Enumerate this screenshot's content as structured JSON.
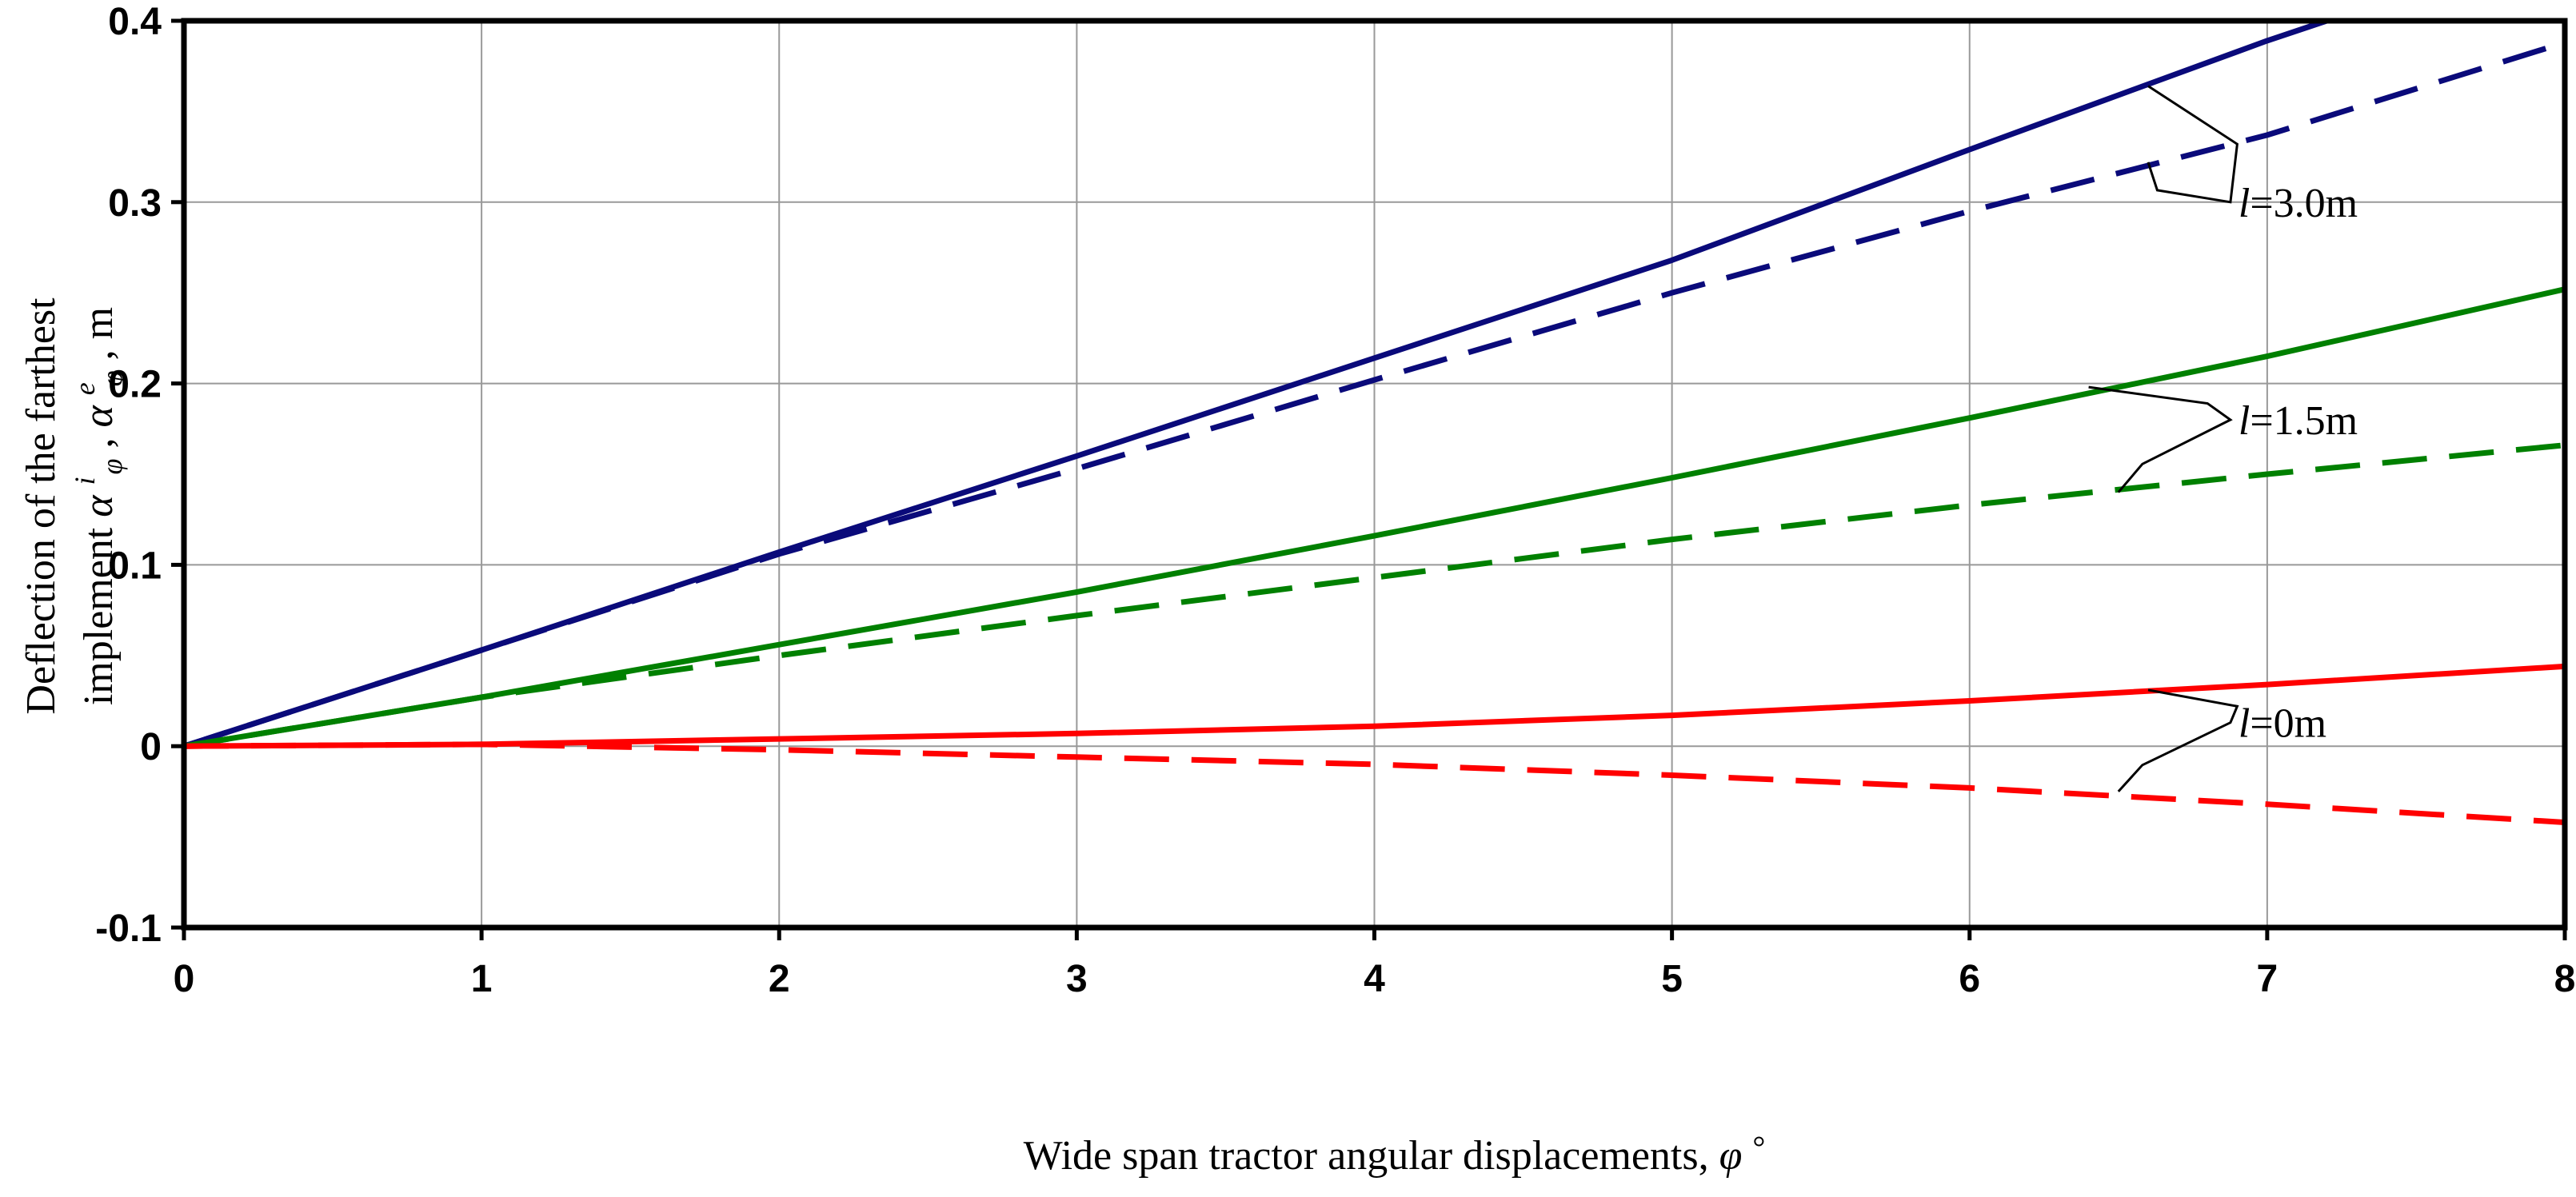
{
  "chart_data": {
    "type": "line",
    "title": "",
    "xlabel_text": "Wide span tractor angular displacements, ",
    "xlabel_symbol": "φ",
    "xlabel_degree": "°",
    "ylabel_line1": "Deflection   of   the   farthest",
    "ylabel_line2_text": "implement ",
    "ylabel_symbol": "α",
    "ylabel_sub1": "φ",
    "ylabel_sup1": "i",
    "ylabel_sep": " ,",
    "ylabel_sup2": "e",
    "ylabel_sub2": "φ",
    "ylabel_unit": ", m",
    "xlim": [
      0,
      8
    ],
    "ylim": [
      -0.1,
      0.4
    ],
    "xticks": [
      "0",
      "1",
      "2",
      "3",
      "4",
      "5",
      "6",
      "7",
      "8"
    ],
    "yticks": [
      "-0.1",
      "0",
      "0.1",
      "0.2",
      "0.3",
      "0.4"
    ],
    "xtick_values": [
      0,
      1,
      2,
      3,
      4,
      5,
      6,
      7,
      8
    ],
    "ytick_values": [
      -0.1,
      0,
      0.1,
      0.2,
      0.3,
      0.4
    ],
    "grid": true,
    "series": [
      {
        "color": "#0a0a7a",
        "dash": false,
        "x": [
          0,
          1,
          2,
          3,
          4,
          5,
          6,
          7,
          7.2
        ],
        "y": [
          0,
          0.053,
          0.107,
          0.16,
          0.214,
          0.268,
          0.329,
          0.389,
          0.4
        ]
      },
      {
        "color": "#0a0a7a",
        "dash": true,
        "x": [
          0,
          1,
          2,
          3,
          4,
          5,
          6,
          7,
          8
        ],
        "y": [
          0,
          0.053,
          0.106,
          0.153,
          0.202,
          0.25,
          0.295,
          0.337,
          0.388
        ]
      },
      {
        "color": "#008000",
        "dash": false,
        "x": [
          0,
          1,
          2,
          3,
          4,
          5,
          6,
          7,
          8
        ],
        "y": [
          0,
          0.027,
          0.056,
          0.085,
          0.116,
          0.148,
          0.181,
          0.215,
          0.252
        ]
      },
      {
        "color": "#008000",
        "dash": true,
        "x": [
          0,
          1,
          2,
          3,
          4,
          5,
          6,
          7,
          8
        ],
        "y": [
          0,
          0.027,
          0.05,
          0.072,
          0.093,
          0.114,
          0.133,
          0.15,
          0.166
        ]
      },
      {
        "color": "#ff0000",
        "dash": false,
        "x": [
          0,
          1,
          2,
          3,
          4,
          5,
          6,
          7,
          8
        ],
        "y": [
          0,
          0.001,
          0.004,
          0.007,
          0.011,
          0.017,
          0.025,
          0.034,
          0.044
        ]
      },
      {
        "color": "#ff0000",
        "dash": true,
        "x": [
          0,
          1,
          2,
          3,
          4,
          5,
          6,
          7,
          8
        ],
        "y": [
          0,
          0.001,
          -0.002,
          -0.006,
          -0.01,
          -0.016,
          -0.023,
          -0.032,
          -0.042
        ]
      }
    ],
    "annotations": [
      {
        "label_l": "l",
        "label_rest": "=3.0m",
        "label_at": [
          7.0,
          0.3
        ],
        "top_target": [
          6.6,
          0.364
        ],
        "bottom_target": [
          6.6,
          0.322
        ]
      },
      {
        "label_l": "l",
        "label_rest": "=1.5m",
        "label_at": [
          7.0,
          0.18
        ],
        "top_target": [
          6.4,
          0.198
        ],
        "bottom_target": [
          6.5,
          0.14
        ]
      },
      {
        "label_l": "l",
        "label_rest": "=0m",
        "label_at": [
          7.0,
          0.013
        ],
        "top_target": [
          6.6,
          0.031
        ],
        "bottom_target": [
          6.5,
          -0.025
        ]
      }
    ]
  }
}
